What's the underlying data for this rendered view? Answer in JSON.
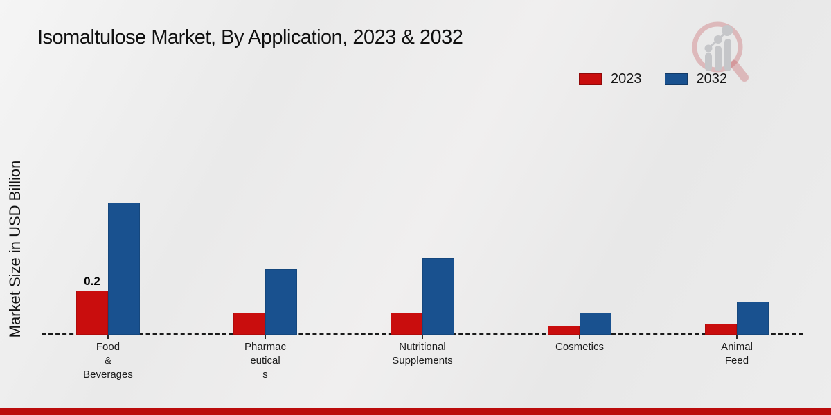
{
  "chart": {
    "title": "Isomaltulose Market, By Application, 2023 & 2032",
    "ylabel": "Market Size in USD Billion"
  },
  "chart_data": {
    "type": "bar",
    "title": "Isomaltulose Market, By Application, 2023 & 2032",
    "xlabel": "",
    "ylabel": "Market Size in USD Billion",
    "categories": [
      "Food & Beverages",
      "Pharmaceuticals",
      "Nutritional Supplements",
      "Cosmetics",
      "Animal Feed"
    ],
    "category_label_lines": [
      [
        "Food",
        "&",
        "Beverages"
      ],
      [
        "Pharmac",
        "eutical",
        "s"
      ],
      [
        "Nutritional",
        "Supplements"
      ],
      [
        "Cosmetics"
      ],
      [
        "Animal",
        "Feed"
      ]
    ],
    "series": [
      {
        "name": "2023",
        "color": "#c90d0d",
        "values": [
          0.2,
          0.1,
          0.1,
          0.04,
          0.05
        ]
      },
      {
        "name": "2032",
        "color": "#19518f",
        "values": [
          0.6,
          0.3,
          0.35,
          0.1,
          0.15
        ]
      }
    ],
    "annotations": [
      {
        "series": "2023",
        "category": "Food & Beverages",
        "text": "0.2"
      }
    ],
    "ylim": [
      0,
      0.65
    ],
    "grid": false,
    "legend_position": "top-right",
    "baseline_style": "dashed"
  },
  "footer": {
    "accent_color": "#bb0c0c"
  }
}
